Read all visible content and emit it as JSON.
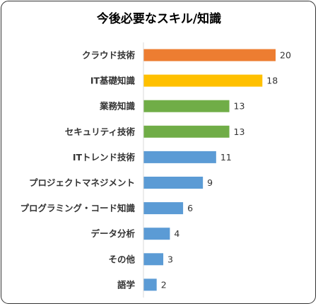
{
  "chart_data": {
    "type": "bar",
    "orientation": "horizontal",
    "title": "今後必要なスキル/知識",
    "categories": [
      "クラウド技術",
      "IT基礎知識",
      "業務知識",
      "セキュリティ技術",
      "ITトレンド技術",
      "プロジェクトマネジメント",
      "プログラミング・コード知識",
      "データ分析",
      "その他",
      "語学"
    ],
    "values": [
      20,
      18,
      13,
      13,
      11,
      9,
      6,
      4,
      3,
      2
    ],
    "bar_colors": [
      "#ed7d31",
      "#ffc000",
      "#70ad47",
      "#70ad47",
      "#5b9bd5",
      "#5b9bd5",
      "#5b9bd5",
      "#5b9bd5",
      "#5b9bd5",
      "#5b9bd5"
    ],
    "xlim": [
      0,
      20
    ],
    "data_labels": true,
    "grid": false,
    "legend": "none"
  }
}
